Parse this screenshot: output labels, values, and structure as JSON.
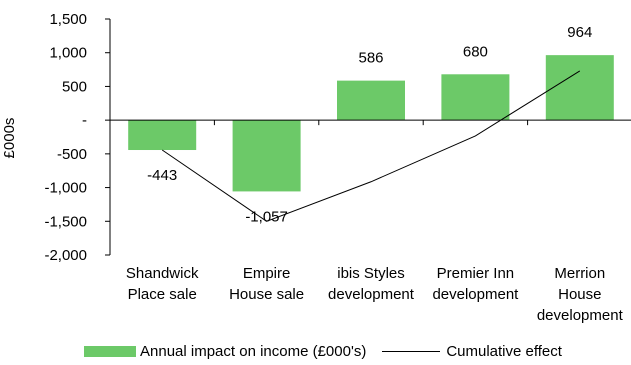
{
  "chart_data": {
    "type": "bar",
    "categories": [
      [
        "Shandwick",
        "Place sale"
      ],
      [
        "Empire",
        "House sale"
      ],
      [
        "ibis Styles",
        "development"
      ],
      [
        "Premier Inn",
        "development"
      ],
      [
        "Merrion",
        "House",
        "development"
      ]
    ],
    "series": [
      {
        "name": "Annual impact on income (£000's)",
        "type": "bar",
        "values": [
          -443,
          -1057,
          586,
          680,
          964
        ],
        "color": "#6cc968"
      },
      {
        "name": "Cumulative effect",
        "type": "line",
        "values": [
          -443,
          -1500,
          -914,
          -234,
          730
        ],
        "color": "#000000"
      }
    ],
    "data_labels": [
      "-443",
      "-1,057",
      "586",
      "680",
      "964"
    ],
    "ylabel": "£000s",
    "ylim": [
      -2000,
      1500
    ],
    "yticks": [
      {
        "value": 1500,
        "label": "1,500"
      },
      {
        "value": 1000,
        "label": "1,000"
      },
      {
        "value": 500,
        "label": "500"
      },
      {
        "value": 0,
        "label": "-"
      },
      {
        "value": -500,
        "label": "-500"
      },
      {
        "value": -1000,
        "label": "-1,000"
      },
      {
        "value": -1500,
        "label": "-1,500"
      },
      {
        "value": -2000,
        "label": "-2,000"
      }
    ],
    "grid": false,
    "legend_position": "bottom"
  }
}
